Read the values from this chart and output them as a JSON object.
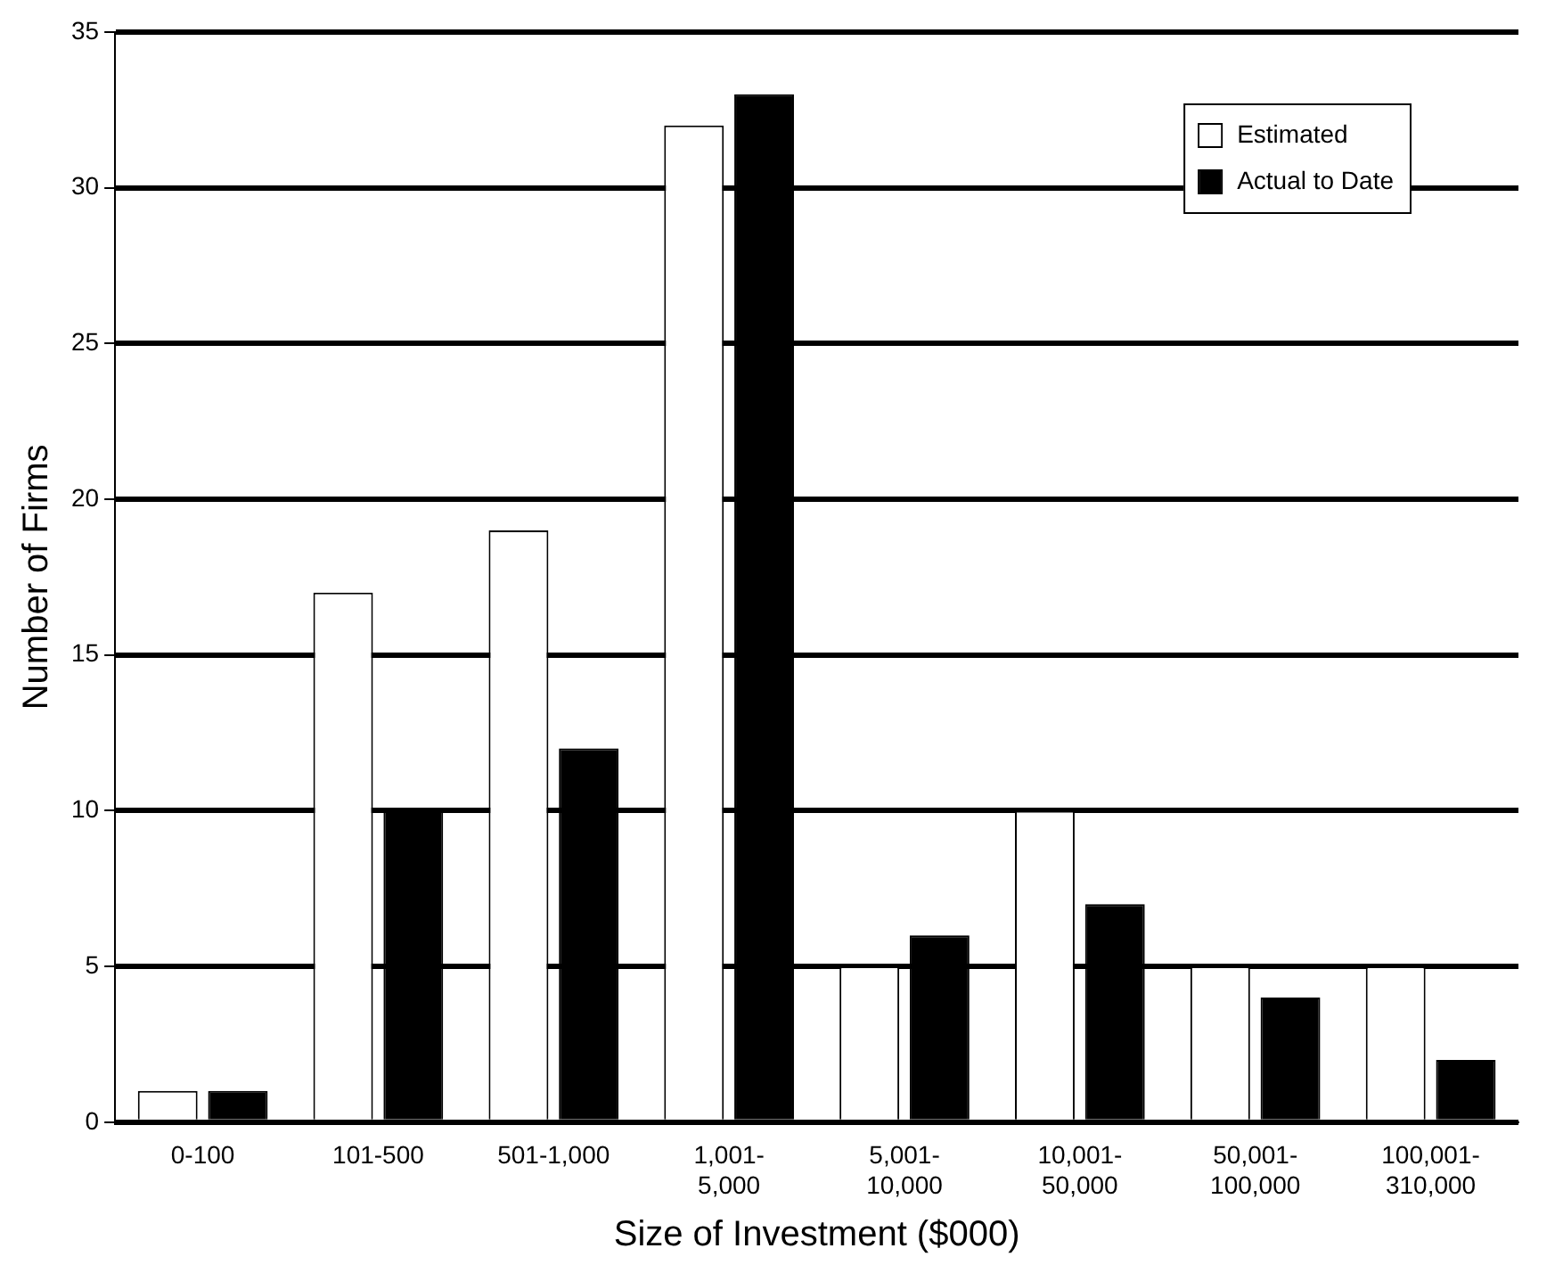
{
  "chart_data": {
    "type": "bar",
    "xlabel": "Size of Investment ($000)",
    "ylabel": "Number of Firms",
    "categories": [
      "0-100",
      "101-500",
      "501-1,000",
      "1,001-5,000",
      "5,001-10,000",
      "10,001-50,000",
      "50,001-100,000",
      "100,001-310,000"
    ],
    "series": [
      {
        "name": "Estimated",
        "color": "#ffffff",
        "values": [
          1,
          17,
          19,
          32,
          5,
          10,
          5,
          5
        ]
      },
      {
        "name": "Actual to Date",
        "color": "#000000",
        "values": [
          1,
          10,
          12,
          33,
          6,
          7,
          4,
          2
        ]
      }
    ],
    "ylim": [
      0,
      35
    ],
    "yticks": [
      0,
      5,
      10,
      15,
      20,
      25,
      30,
      35
    ],
    "grid": "y",
    "legend": "top right"
  }
}
